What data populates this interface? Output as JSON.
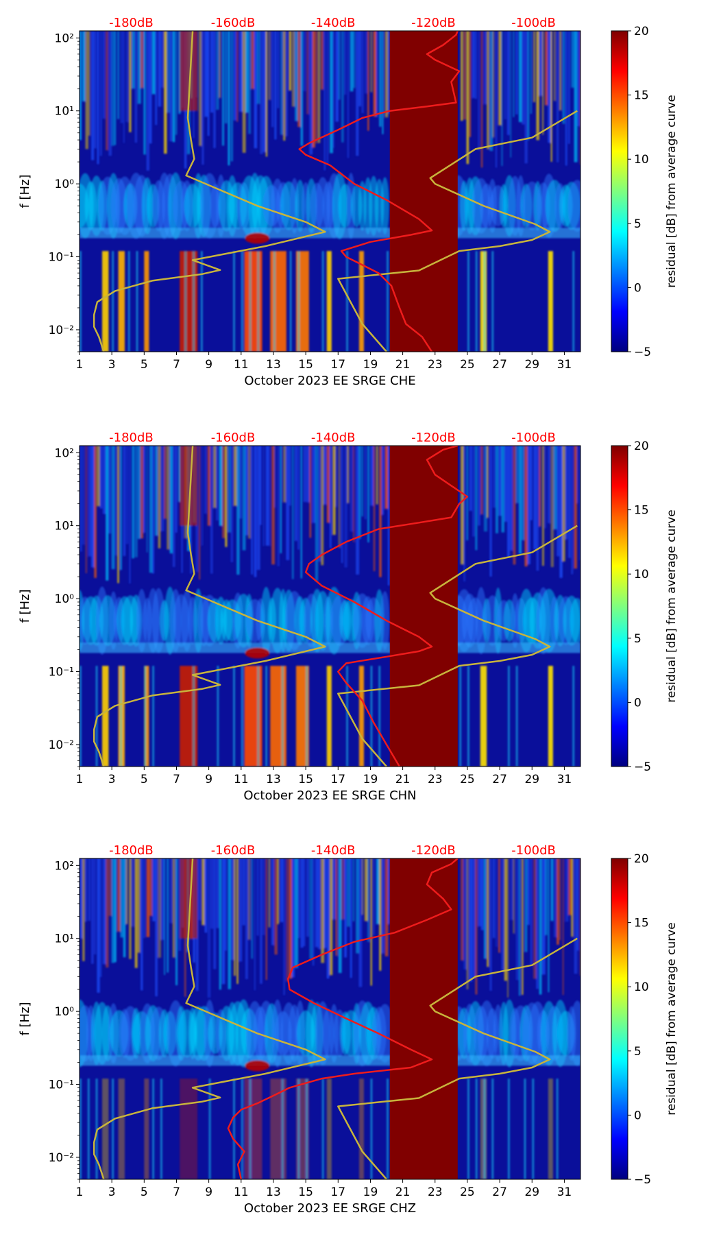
{
  "colorbar": {
    "label": "residual [dB] from average curve",
    "ticks": [
      "20",
      "15",
      "10",
      "5",
      "0",
      "−5"
    ],
    "colors": [
      "#00007f",
      "#0000ff",
      "#007fff",
      "#00ffff",
      "#7fff7f",
      "#ffff00",
      "#ff7f00",
      "#ff0000",
      "#7f0000"
    ]
  },
  "chart_data": [
    {
      "type": "heatmap",
      "title": "",
      "xlabel": "October 2023 EE SRGE  CHE",
      "ylabel": "f [Hz]",
      "xlim": [
        1,
        32
      ],
      "ylim": [
        0.005,
        125
      ],
      "yscale": "log",
      "x_tick_labels": [
        "1",
        "3",
        "5",
        "7",
        "9",
        "11",
        "13",
        "15",
        "17",
        "19",
        "21",
        "23",
        "25",
        "27",
        "29",
        "31"
      ],
      "y_tick_labels": [
        "10⁻²",
        "10⁻¹",
        "10⁰",
        "10¹",
        "10²"
      ],
      "top_axis_labels": [
        "-180dB",
        "-160dB",
        "-140dB",
        "-120dB",
        "-100dB"
      ],
      "colorbar_range": [
        -5,
        20
      ],
      "saturated_days": [
        20.2,
        24.4
      ],
      "red_curve_points": [
        [
          22.8,
          0.005
        ],
        [
          22.2,
          0.008
        ],
        [
          21.2,
          0.012
        ],
        [
          20.8,
          0.02
        ],
        [
          20.3,
          0.04
        ],
        [
          19.5,
          0.06
        ],
        [
          17.5,
          0.1
        ],
        [
          17.2,
          0.12
        ],
        [
          19.0,
          0.16
        ],
        [
          21.5,
          0.2
        ],
        [
          22.8,
          0.23
        ],
        [
          22.0,
          0.33
        ],
        [
          20.0,
          0.6
        ],
        [
          18.0,
          1.0
        ],
        [
          16.5,
          1.8
        ],
        [
          15.0,
          2.5
        ],
        [
          14.6,
          3.0
        ],
        [
          15.2,
          3.6
        ],
        [
          17.0,
          5.5
        ],
        [
          18.5,
          8.0
        ],
        [
          20.2,
          10.0
        ],
        [
          22.5,
          11.5
        ],
        [
          24.3,
          13.0
        ],
        [
          24.0,
          25
        ],
        [
          24.5,
          35
        ],
        [
          23.0,
          50
        ],
        [
          22.5,
          60
        ],
        [
          23.5,
          80
        ],
        [
          24.3,
          110
        ],
        [
          24.4,
          125
        ]
      ],
      "yellow_curve_points": [
        [
          2.5,
          0.005
        ],
        [
          2.2,
          0.008
        ],
        [
          1.9,
          0.011
        ],
        [
          1.9,
          0.016
        ],
        [
          2.1,
          0.024
        ],
        [
          3.2,
          0.034
        ],
        [
          5.5,
          0.047
        ],
        [
          8.6,
          0.058
        ],
        [
          9.7,
          0.066
        ],
        [
          8.0,
          0.09
        ],
        [
          12.5,
          0.14
        ],
        [
          16.2,
          0.22
        ],
        [
          15.0,
          0.3
        ],
        [
          12.0,
          0.5
        ],
        [
          7.6,
          1.3
        ],
        [
          8.1,
          2.2
        ],
        [
          7.9,
          4.0
        ],
        [
          7.7,
          8.0
        ],
        [
          8.0,
          125
        ]
      ],
      "grey_curve_points": [
        [
          20.0,
          0.005
        ],
        [
          18.5,
          0.012
        ],
        [
          17.0,
          0.05
        ],
        [
          22.0,
          0.065
        ],
        [
          24.5,
          0.12
        ],
        [
          27.0,
          0.14
        ],
        [
          29.0,
          0.17
        ],
        [
          30.1,
          0.22
        ],
        [
          29.2,
          0.28
        ],
        [
          26.0,
          0.5
        ],
        [
          23.0,
          1.0
        ],
        [
          22.7,
          1.2
        ],
        [
          25.5,
          3.0
        ],
        [
          29.0,
          4.3
        ],
        [
          31.8,
          10.0
        ]
      ]
    },
    {
      "type": "heatmap",
      "title": "",
      "xlabel": "October 2023 EE SRGE  CHN",
      "ylabel": "f [Hz]",
      "xlim": [
        1,
        32
      ],
      "ylim": [
        0.005,
        125
      ],
      "yscale": "log",
      "x_tick_labels": [
        "1",
        "3",
        "5",
        "7",
        "9",
        "11",
        "13",
        "15",
        "17",
        "19",
        "21",
        "23",
        "25",
        "27",
        "29",
        "31"
      ],
      "y_tick_labels": [
        "10⁻²",
        "10⁻¹",
        "10⁰",
        "10¹",
        "10²"
      ],
      "top_axis_labels": [
        "-180dB",
        "-160dB",
        "-140dB",
        "-120dB",
        "-100dB"
      ],
      "colorbar_range": [
        -5,
        20
      ],
      "saturated_days": [
        20.2,
        24.4
      ],
      "red_curve_points": [
        [
          20.8,
          0.005
        ],
        [
          20.0,
          0.01
        ],
        [
          19.2,
          0.02
        ],
        [
          18.5,
          0.04
        ],
        [
          17.5,
          0.07
        ],
        [
          17.0,
          0.1
        ],
        [
          17.5,
          0.13
        ],
        [
          20.0,
          0.16
        ],
        [
          22.0,
          0.19
        ],
        [
          22.8,
          0.22
        ],
        [
          22.0,
          0.3
        ],
        [
          20.0,
          0.5
        ],
        [
          18.0,
          0.9
        ],
        [
          16.0,
          1.5
        ],
        [
          15.0,
          2.3
        ],
        [
          15.2,
          3.0
        ],
        [
          16.0,
          4.0
        ],
        [
          17.5,
          6.0
        ],
        [
          19.5,
          9.0
        ],
        [
          22.0,
          11.0
        ],
        [
          24.0,
          13.0
        ],
        [
          24.5,
          20
        ],
        [
          25.0,
          25
        ],
        [
          23.0,
          50
        ],
        [
          22.5,
          80
        ],
        [
          23.5,
          110
        ],
        [
          24.4,
          125
        ]
      ],
      "yellow_curve_points": [
        [
          2.5,
          0.005
        ],
        [
          2.2,
          0.008
        ],
        [
          1.9,
          0.011
        ],
        [
          1.9,
          0.016
        ],
        [
          2.1,
          0.024
        ],
        [
          3.2,
          0.034
        ],
        [
          5.5,
          0.047
        ],
        [
          8.6,
          0.058
        ],
        [
          9.7,
          0.066
        ],
        [
          8.0,
          0.09
        ],
        [
          12.5,
          0.14
        ],
        [
          16.2,
          0.22
        ],
        [
          15.0,
          0.3
        ],
        [
          12.0,
          0.5
        ],
        [
          7.6,
          1.3
        ],
        [
          8.1,
          2.2
        ],
        [
          7.9,
          4.0
        ],
        [
          7.7,
          8.0
        ],
        [
          8.0,
          125
        ]
      ],
      "grey_curve_points": [
        [
          20.0,
          0.005
        ],
        [
          18.5,
          0.012
        ],
        [
          17.0,
          0.05
        ],
        [
          22.0,
          0.065
        ],
        [
          24.5,
          0.12
        ],
        [
          27.0,
          0.14
        ],
        [
          29.0,
          0.17
        ],
        [
          30.1,
          0.22
        ],
        [
          29.2,
          0.28
        ],
        [
          26.0,
          0.5
        ],
        [
          23.0,
          1.0
        ],
        [
          22.7,
          1.2
        ],
        [
          25.5,
          3.0
        ],
        [
          29.0,
          4.3
        ],
        [
          31.8,
          10.0
        ]
      ]
    },
    {
      "type": "heatmap",
      "title": "",
      "xlabel": "October 2023 EE SRGE  CHZ",
      "ylabel": "f [Hz]",
      "xlim": [
        1,
        32
      ],
      "ylim": [
        0.005,
        125
      ],
      "yscale": "log",
      "x_tick_labels": [
        "1",
        "3",
        "5",
        "7",
        "9",
        "11",
        "13",
        "15",
        "17",
        "19",
        "21",
        "23",
        "25",
        "27",
        "29",
        "31"
      ],
      "y_tick_labels": [
        "10⁻²",
        "10⁻¹",
        "10⁰",
        "10¹",
        "10²"
      ],
      "top_axis_labels": [
        "-180dB",
        "-160dB",
        "-140dB",
        "-120dB",
        "-100dB"
      ],
      "colorbar_range": [
        -5,
        20
      ],
      "saturated_days": [
        20.2,
        24.4
      ],
      "red_curve_points": [
        [
          11.0,
          0.005
        ],
        [
          10.8,
          0.008
        ],
        [
          11.2,
          0.012
        ],
        [
          10.5,
          0.018
        ],
        [
          10.2,
          0.025
        ],
        [
          10.5,
          0.035
        ],
        [
          11.0,
          0.045
        ],
        [
          12.0,
          0.055
        ],
        [
          13.0,
          0.07
        ],
        [
          14.0,
          0.09
        ],
        [
          16.0,
          0.12
        ],
        [
          18.0,
          0.14
        ],
        [
          21.5,
          0.17
        ],
        [
          22.8,
          0.22
        ],
        [
          21.5,
          0.3
        ],
        [
          19.5,
          0.5
        ],
        [
          17.5,
          0.8
        ],
        [
          15.5,
          1.3
        ],
        [
          14.0,
          2.0
        ],
        [
          13.9,
          2.8
        ],
        [
          14.2,
          4.0
        ],
        [
          16.0,
          6.0
        ],
        [
          18.0,
          9.0
        ],
        [
          20.5,
          12.0
        ],
        [
          22.5,
          18.0
        ],
        [
          24.0,
          25.0
        ],
        [
          23.5,
          35
        ],
        [
          22.5,
          55
        ],
        [
          22.8,
          80
        ],
        [
          24.0,
          105
        ],
        [
          24.4,
          125
        ]
      ],
      "yellow_curve_points": [
        [
          2.5,
          0.005
        ],
        [
          2.2,
          0.008
        ],
        [
          1.9,
          0.011
        ],
        [
          1.9,
          0.016
        ],
        [
          2.1,
          0.024
        ],
        [
          3.2,
          0.034
        ],
        [
          5.5,
          0.047
        ],
        [
          8.6,
          0.058
        ],
        [
          9.7,
          0.066
        ],
        [
          8.0,
          0.09
        ],
        [
          12.5,
          0.14
        ],
        [
          16.2,
          0.22
        ],
        [
          15.0,
          0.3
        ],
        [
          12.0,
          0.5
        ],
        [
          7.6,
          1.3
        ],
        [
          8.1,
          2.2
        ],
        [
          7.9,
          4.0
        ],
        [
          7.7,
          8.0
        ],
        [
          8.0,
          125
        ]
      ],
      "grey_curve_points": [
        [
          20.0,
          0.005
        ],
        [
          18.5,
          0.012
        ],
        [
          17.0,
          0.05
        ],
        [
          22.0,
          0.065
        ],
        [
          24.5,
          0.12
        ],
        [
          27.0,
          0.14
        ],
        [
          29.0,
          0.17
        ],
        [
          30.1,
          0.22
        ],
        [
          29.2,
          0.28
        ],
        [
          26.0,
          0.5
        ],
        [
          23.0,
          1.0
        ],
        [
          22.7,
          1.2
        ],
        [
          25.5,
          3.0
        ],
        [
          29.0,
          4.3
        ],
        [
          31.8,
          10.0
        ]
      ]
    }
  ]
}
